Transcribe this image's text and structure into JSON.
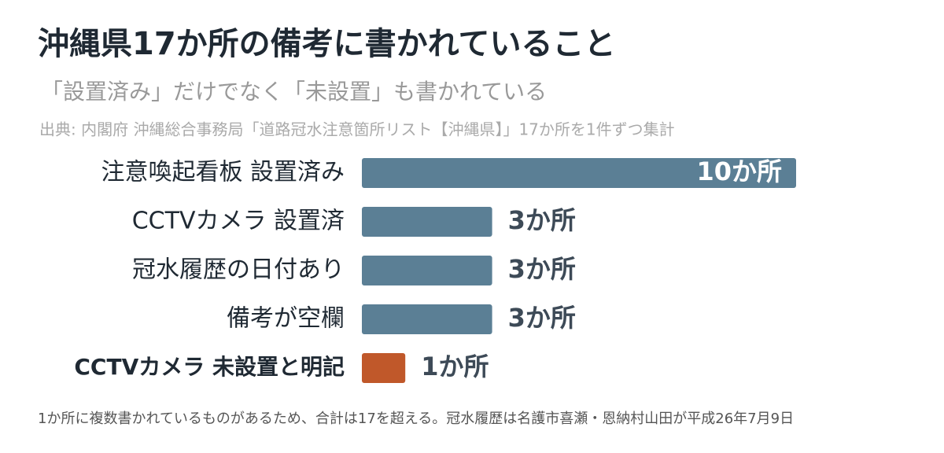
{
  "chart_data": {
    "type": "bar",
    "orientation": "horizontal",
    "title": "沖縄県17か所の備考に書かれていること",
    "subtitle": "「設置済み」だけでなく「未設置」も書かれている",
    "source": "出典: 内閣府 沖縄総合事務局「道路冠水注意箇所リスト【沖縄県】」17か所を1件ずつ集計",
    "categories": [
      "注意喚起看板 設置済み",
      "CCTVカメラ 設置済",
      "冠水履歴の日付あり",
      "備考が空欄",
      "CCTVカメラ 未設置と明記"
    ],
    "values": [
      10,
      3,
      3,
      3,
      1
    ],
    "value_labels": [
      "10か所",
      "3か所",
      "3か所",
      "3か所",
      "1か所"
    ],
    "colors": [
      "#5b7f95",
      "#5b7f95",
      "#5b7f95",
      "#5b7f95",
      "#c0582a"
    ],
    "note": "1か所に複数書かれているものがあるため、合計は17を超える。冠水履歴は名護市喜瀬・恩納村山田が平成26年7月9日"
  }
}
